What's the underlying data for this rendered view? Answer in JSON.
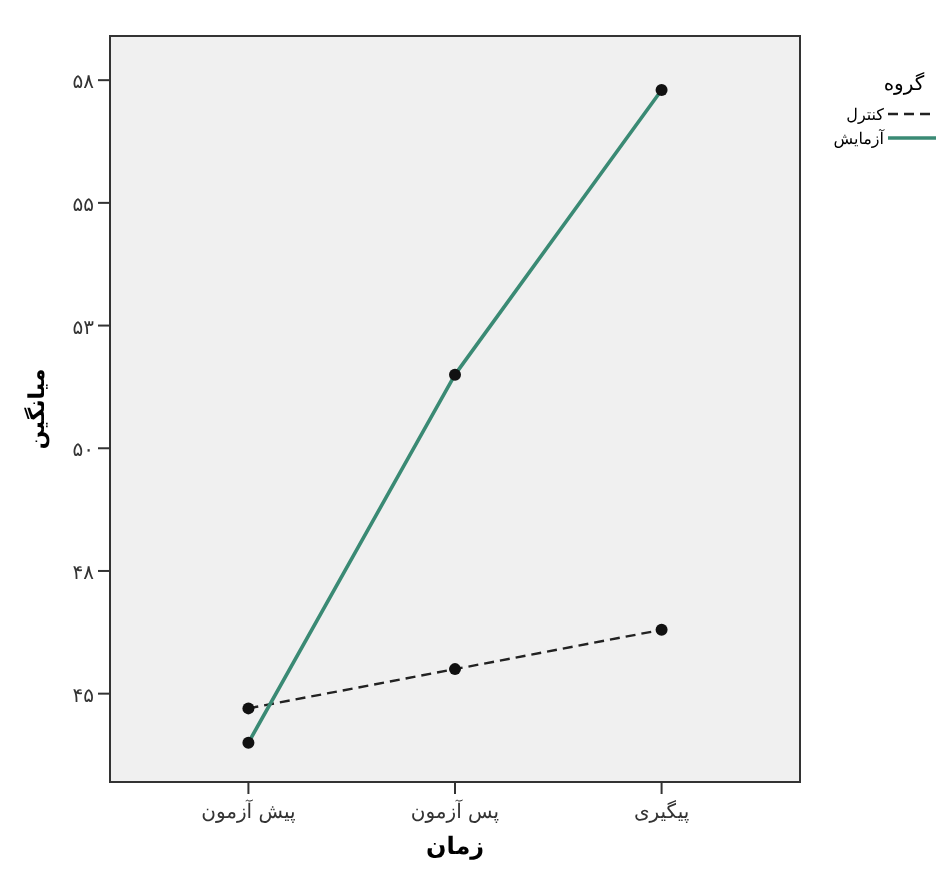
{
  "chart_data": {
    "type": "line",
    "xlabel": "زمان",
    "ylabel": "میانگین",
    "legend_title": "گروه",
    "categories": [
      "پیش آزمون",
      "پس آزمون",
      "پیگیری"
    ],
    "ylim": [
      43.2,
      58.4
    ],
    "yticks": [
      {
        "value": 45,
        "label": "۴۵"
      },
      {
        "value": 47.5,
        "label": "۴۸"
      },
      {
        "value": 50,
        "label": "۵۰"
      },
      {
        "value": 52.5,
        "label": "۵۳"
      },
      {
        "value": 55,
        "label": "۵۵"
      },
      {
        "value": 57.5,
        "label": "۵۸"
      }
    ],
    "legend": "right",
    "marker": "circle",
    "grid": false,
    "series": [
      {
        "name": "کنترل",
        "color": "#222222",
        "line_style": "dashed",
        "values": [
          44.7,
          45.5,
          46.3
        ]
      },
      {
        "name": "آزمایش",
        "color": "#3a8a74",
        "line_style": "solid",
        "values": [
          44.0,
          51.5,
          57.3
        ]
      }
    ]
  }
}
